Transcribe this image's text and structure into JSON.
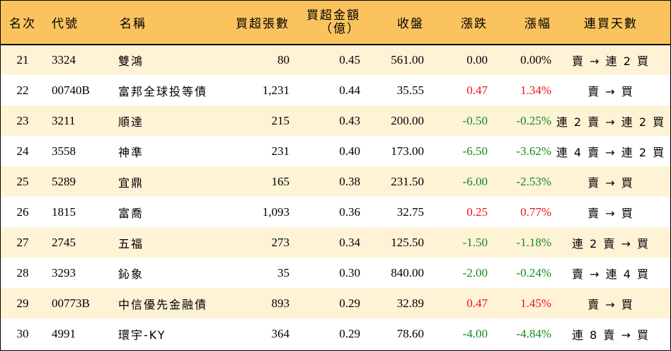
{
  "headers": {
    "rank": "名次",
    "code": "代號",
    "name": "名稱",
    "volume": "買超張數",
    "amount_line1": "買超金額",
    "amount_line2": "（億）",
    "close": "收盤",
    "change": "漲跌",
    "pct": "漲幅",
    "days": "連買天數"
  },
  "colors": {
    "header_bg": "#fbc35e",
    "odd_row_bg": "#fff3d6",
    "even_row_bg": "#ffffff",
    "up": "#e8141c",
    "down": "#138a1c"
  },
  "rows": [
    {
      "rank": "21",
      "code": "3324",
      "name": "雙鴻",
      "volume": "80",
      "amount": "0.45",
      "close": "561.00",
      "change": "0.00",
      "pct": "0.00%",
      "days": "賣 → 連 2 買",
      "trend": "flat"
    },
    {
      "rank": "22",
      "code": "00740B",
      "name": "富邦全球投等債",
      "volume": "1,231",
      "amount": "0.44",
      "close": "35.55",
      "change": "0.47",
      "pct": "1.34%",
      "days": "賣 → 買",
      "trend": "up"
    },
    {
      "rank": "23",
      "code": "3211",
      "name": "順達",
      "volume": "215",
      "amount": "0.43",
      "close": "200.00",
      "change": "-0.50",
      "pct": "-0.25%",
      "days": "連 2 賣 → 連 2 買",
      "trend": "down"
    },
    {
      "rank": "24",
      "code": "3558",
      "name": "神準",
      "volume": "231",
      "amount": "0.40",
      "close": "173.00",
      "change": "-6.50",
      "pct": "-3.62%",
      "days": "連 4 賣 → 連 2 買",
      "trend": "down"
    },
    {
      "rank": "25",
      "code": "5289",
      "name": "宜鼎",
      "volume": "165",
      "amount": "0.38",
      "close": "231.50",
      "change": "-6.00",
      "pct": "-2.53%",
      "days": "賣 → 買",
      "trend": "down"
    },
    {
      "rank": "26",
      "code": "1815",
      "name": "富喬",
      "volume": "1,093",
      "amount": "0.36",
      "close": "32.75",
      "change": "0.25",
      "pct": "0.77%",
      "days": "賣 → 買",
      "trend": "up"
    },
    {
      "rank": "27",
      "code": "2745",
      "name": "五福",
      "volume": "273",
      "amount": "0.34",
      "close": "125.50",
      "change": "-1.50",
      "pct": "-1.18%",
      "days": "連 2 賣 → 買",
      "trend": "down"
    },
    {
      "rank": "28",
      "code": "3293",
      "name": "鈊象",
      "volume": "35",
      "amount": "0.30",
      "close": "840.00",
      "change": "-2.00",
      "pct": "-0.24%",
      "days": "賣 → 連 4 買",
      "trend": "down"
    },
    {
      "rank": "29",
      "code": "00773B",
      "name": "中信優先金融債",
      "volume": "893",
      "amount": "0.29",
      "close": "32.89",
      "change": "0.47",
      "pct": "1.45%",
      "days": "賣 → 買",
      "trend": "up"
    },
    {
      "rank": "30",
      "code": "4991",
      "name": "環宇-KY",
      "volume": "364",
      "amount": "0.29",
      "close": "78.60",
      "change": "-4.00",
      "pct": "-4.84%",
      "days": "連 8 賣 → 買",
      "trend": "down"
    }
  ]
}
